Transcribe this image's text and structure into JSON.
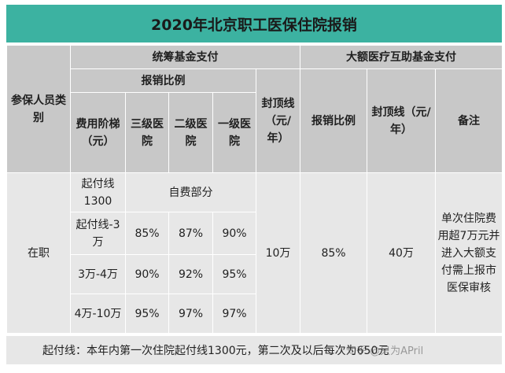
{
  "title": "2020年北京职工医保住院报销",
  "headers": {
    "category": "参保人员类别",
    "pooled_fund": "统筹基金支付",
    "ratio_group": "报销比例",
    "cost_tier": "费用阶梯（元）",
    "level3": "三级医院",
    "level2": "二级医院",
    "level1": "一级医院",
    "cap": "封顶线（元/年）",
    "mutual_fund": "大额医疗互助基金支付",
    "mutual_ratio": "报销比例",
    "mutual_cap": "封顶线（元/年）",
    "remark": "备注"
  },
  "body": {
    "category": "在职",
    "tier_rows": [
      {
        "tier": "起付线1300",
        "self_pay": "自费部分"
      },
      {
        "tier": "起付线-3万",
        "level3": "85%",
        "level2": "87%",
        "level1": "90%"
      },
      {
        "tier": "3万-4万",
        "level3": "90%",
        "level2": "92%",
        "level1": "95%"
      },
      {
        "tier": "4万-10万",
        "level3": "95%",
        "level2": "97%",
        "level1": "97%"
      }
    ],
    "cap": "10万",
    "mutual_ratio": "85%",
    "mutual_cap": "40万",
    "remark": "单次住院费用超7万元并进入大额支付需上报市医保审核"
  },
  "footnote": "起付线：本年内第一次住院起付线1300元，第二次及以后每次为650元",
  "watermark": "知乎 @只为APril",
  "colors": {
    "title_bg": "#3cb2a1",
    "header_bg": "#c8c8c8",
    "body_bg": "#e7e7e7"
  }
}
